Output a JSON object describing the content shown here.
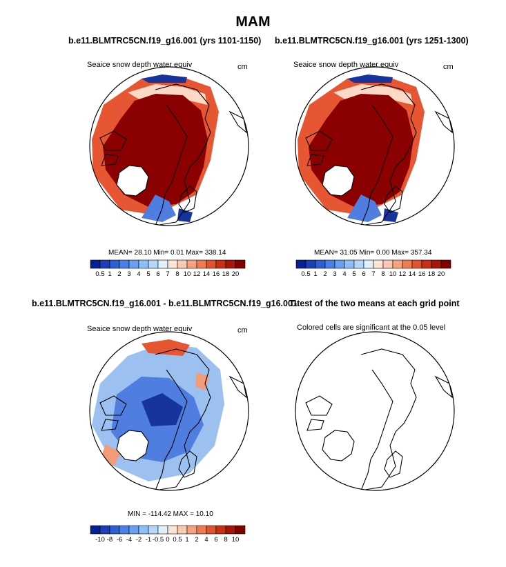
{
  "page": {
    "title": "MAM",
    "label_left": "b.e11.BLMTRC5CN.f19_g16.001 (yrs 1101-1150)",
    "label_right": "b.e11.BLMTRC5CN.f19_g16.001 (yrs 1251-1300)",
    "label_diff": "b.e11.BLMTRC5CN.f19_g16.001 - b.e11.BLMTRC5CN.f19_g16.001",
    "label_ttest": "T-test of the two means at each grid point"
  },
  "colors": {
    "dark_red": "#8b0000",
    "orange_red": "#e65632",
    "light_orange": "#f29b79",
    "pale": "#fbd9c6",
    "blue": "#4f7ee0",
    "light_blue": "#9cc0ef",
    "dark_blue": "#17349c"
  },
  "chart_data": [
    {
      "type": "heatmap",
      "panel": "top-left",
      "subtitle": "Seaice snow depth water equiv",
      "units": "cm",
      "stats": {
        "mean": "28.10",
        "min": "0.01",
        "max": "338.14"
      },
      "stats_text": "MEAN=  28.10  Min=   0.01  Max= 338.14",
      "colorbar": {
        "ticks": [
          "0.5",
          "1",
          "2",
          "3",
          "4",
          "5",
          "6",
          "7",
          "8",
          "10",
          "12",
          "14",
          "16",
          "18",
          "20"
        ],
        "colors": [
          "#08208f",
          "#1d3fb6",
          "#2d5fd2",
          "#4a80e6",
          "#6a9ff0",
          "#8fbdf5",
          "#b5d6f8",
          "#e2eefb",
          "#fbe4d4",
          "#fbc9ad",
          "#f6a27f",
          "#ef7b55",
          "#e0532f",
          "#c72f16",
          "#a5150a",
          "#800000"
        ]
      }
    },
    {
      "type": "heatmap",
      "panel": "top-right",
      "subtitle": "Seaice snow depth water equiv",
      "units": "cm",
      "stats": {
        "mean": "31.05",
        "min": "0.00",
        "max": "357.34"
      },
      "stats_text": "MEAN=  31.05  Min=   0.00  Max= 357.34",
      "colorbar": {
        "ticks": [
          "0.5",
          "1",
          "2",
          "3",
          "4",
          "5",
          "6",
          "7",
          "8",
          "10",
          "12",
          "14",
          "16",
          "18",
          "20"
        ],
        "colors": [
          "#08208f",
          "#1d3fb6",
          "#2d5fd2",
          "#4a80e6",
          "#6a9ff0",
          "#8fbdf5",
          "#b5d6f8",
          "#e2eefb",
          "#fbe4d4",
          "#fbc9ad",
          "#f6a27f",
          "#ef7b55",
          "#e0532f",
          "#c72f16",
          "#a5150a",
          "#800000"
        ]
      }
    },
    {
      "type": "heatmap",
      "panel": "bottom-left",
      "subtitle": "Seaice snow depth water equiv",
      "units": "cm",
      "stats": {
        "min": "-114.42",
        "max": "10.10"
      },
      "stats_text": "MIN = -114.42  MAX =  10.10",
      "colorbar": {
        "ticks": [
          "-10",
          "-8",
          "-6",
          "-4",
          "-2",
          "-1",
          "-0.5",
          "0",
          "0.5",
          "1",
          "2",
          "4",
          "6",
          "8",
          "10"
        ],
        "colors": [
          "#08208f",
          "#1d3fb6",
          "#2d5fd2",
          "#4a80e6",
          "#6a9ff0",
          "#8fbdf5",
          "#b5d6f8",
          "#e2eefb",
          "#fbe4d4",
          "#fbc9ad",
          "#f6a27f",
          "#ef7b55",
          "#e0532f",
          "#c72f16",
          "#a5150a",
          "#800000"
        ]
      }
    },
    {
      "type": "heatmap",
      "panel": "bottom-right",
      "subtitle": "Colored cells are significant at the 0.05 level",
      "significant_cells": 0
    }
  ]
}
